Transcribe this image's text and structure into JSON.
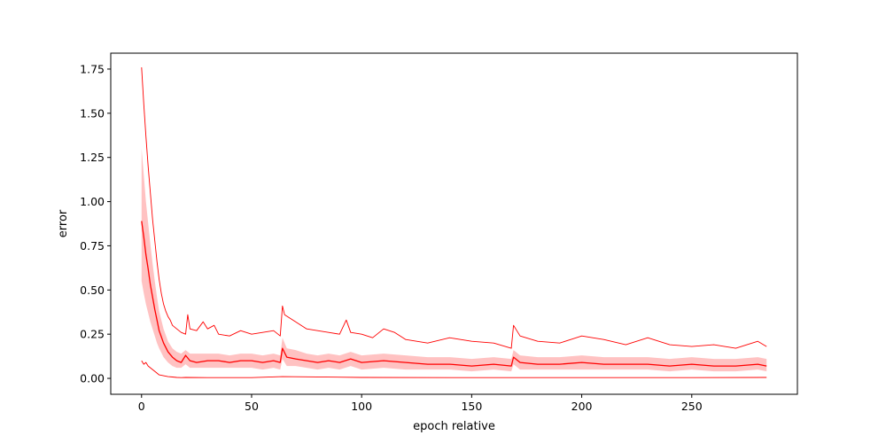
{
  "chart_data": {
    "type": "line",
    "title": "",
    "xlabel": "epoch relative",
    "ylabel": "error",
    "xlim": [
      -14,
      298
    ],
    "ylim": [
      -0.09,
      1.84
    ],
    "grid": false,
    "legend": "none",
    "xticks": [
      0,
      50,
      100,
      150,
      200,
      250
    ],
    "xtick_labels": [
      "0",
      "50",
      "100",
      "150",
      "200",
      "250"
    ],
    "yticks": [
      0.0,
      0.25,
      0.5,
      0.75,
      1.0,
      1.25,
      1.5,
      1.75
    ],
    "ytick_labels": [
      "0.00",
      "0.25",
      "0.50",
      "0.75",
      "1.00",
      "1.25",
      "1.50",
      "1.75"
    ],
    "colors": {
      "line": "#ff0000",
      "band": "#ff9999"
    },
    "series": [
      {
        "role": "mean",
        "x": [
          0,
          1,
          2,
          3,
          4,
          5,
          6,
          7,
          8,
          10,
          12,
          14,
          16,
          18,
          20,
          22,
          25,
          30,
          35,
          40,
          45,
          50,
          55,
          60,
          63,
          64,
          66,
          70,
          75,
          80,
          85,
          90,
          95,
          100,
          110,
          120,
          130,
          140,
          150,
          160,
          168,
          169,
          172,
          180,
          190,
          200,
          210,
          220,
          230,
          240,
          250,
          260,
          270,
          280,
          284
        ],
        "y": [
          0.89,
          0.8,
          0.7,
          0.62,
          0.53,
          0.46,
          0.39,
          0.33,
          0.27,
          0.2,
          0.15,
          0.12,
          0.1,
          0.09,
          0.13,
          0.1,
          0.09,
          0.1,
          0.1,
          0.09,
          0.1,
          0.1,
          0.09,
          0.1,
          0.09,
          0.17,
          0.12,
          0.11,
          0.1,
          0.09,
          0.1,
          0.09,
          0.11,
          0.09,
          0.1,
          0.09,
          0.08,
          0.08,
          0.07,
          0.08,
          0.07,
          0.12,
          0.09,
          0.08,
          0.08,
          0.09,
          0.08,
          0.08,
          0.08,
          0.07,
          0.08,
          0.07,
          0.07,
          0.08,
          0.07
        ]
      },
      {
        "role": "band_upper",
        "x": [
          0,
          1,
          2,
          3,
          4,
          5,
          6,
          7,
          8,
          10,
          12,
          14,
          16,
          18,
          20,
          22,
          25,
          30,
          35,
          40,
          45,
          50,
          55,
          60,
          63,
          64,
          66,
          70,
          75,
          80,
          85,
          90,
          95,
          100,
          110,
          120,
          130,
          140,
          150,
          160,
          168,
          169,
          172,
          180,
          190,
          200,
          210,
          220,
          230,
          240,
          250,
          260,
          270,
          280,
          284
        ],
        "y": [
          1.3,
          1.15,
          1.0,
          0.88,
          0.76,
          0.65,
          0.55,
          0.46,
          0.38,
          0.28,
          0.21,
          0.17,
          0.15,
          0.14,
          0.16,
          0.14,
          0.14,
          0.14,
          0.14,
          0.13,
          0.14,
          0.14,
          0.13,
          0.14,
          0.13,
          0.23,
          0.17,
          0.16,
          0.14,
          0.13,
          0.14,
          0.13,
          0.15,
          0.13,
          0.14,
          0.13,
          0.12,
          0.12,
          0.11,
          0.12,
          0.11,
          0.16,
          0.13,
          0.12,
          0.12,
          0.13,
          0.12,
          0.12,
          0.12,
          0.11,
          0.12,
          0.11,
          0.11,
          0.12,
          0.11
        ]
      },
      {
        "role": "band_lower",
        "x": [
          0,
          1,
          2,
          3,
          4,
          5,
          6,
          7,
          8,
          10,
          12,
          14,
          16,
          18,
          20,
          22,
          25,
          30,
          35,
          40,
          45,
          50,
          55,
          60,
          63,
          64,
          66,
          70,
          75,
          80,
          85,
          90,
          95,
          100,
          110,
          120,
          130,
          140,
          150,
          160,
          168,
          169,
          172,
          180,
          190,
          200,
          210,
          220,
          230,
          240,
          250,
          260,
          270,
          280,
          284
        ],
        "y": [
          0.55,
          0.48,
          0.42,
          0.37,
          0.32,
          0.28,
          0.24,
          0.2,
          0.17,
          0.12,
          0.09,
          0.07,
          0.06,
          0.06,
          0.08,
          0.06,
          0.06,
          0.06,
          0.06,
          0.06,
          0.06,
          0.06,
          0.05,
          0.06,
          0.05,
          0.11,
          0.07,
          0.07,
          0.06,
          0.05,
          0.06,
          0.05,
          0.07,
          0.05,
          0.06,
          0.05,
          0.05,
          0.05,
          0.04,
          0.05,
          0.04,
          0.08,
          0.05,
          0.05,
          0.05,
          0.05,
          0.05,
          0.05,
          0.05,
          0.04,
          0.05,
          0.04,
          0.04,
          0.05,
          0.04
        ]
      },
      {
        "role": "max",
        "x": [
          0,
          1,
          2,
          3,
          4,
          5,
          6,
          7,
          8,
          9,
          10,
          11,
          12,
          13,
          14,
          16,
          18,
          20,
          21,
          22,
          25,
          28,
          30,
          33,
          35,
          40,
          45,
          50,
          55,
          60,
          63,
          64,
          65,
          70,
          75,
          80,
          85,
          90,
          93,
          95,
          100,
          105,
          110,
          115,
          120,
          130,
          140,
          150,
          160,
          168,
          169,
          172,
          180,
          190,
          200,
          210,
          220,
          230,
          240,
          250,
          260,
          270,
          280,
          284
        ],
        "y": [
          1.76,
          1.55,
          1.37,
          1.2,
          1.05,
          0.9,
          0.78,
          0.66,
          0.56,
          0.48,
          0.42,
          0.38,
          0.35,
          0.33,
          0.3,
          0.28,
          0.26,
          0.25,
          0.36,
          0.28,
          0.27,
          0.32,
          0.28,
          0.3,
          0.25,
          0.24,
          0.27,
          0.25,
          0.26,
          0.27,
          0.24,
          0.41,
          0.36,
          0.32,
          0.28,
          0.27,
          0.26,
          0.25,
          0.33,
          0.26,
          0.25,
          0.23,
          0.28,
          0.26,
          0.22,
          0.2,
          0.23,
          0.21,
          0.2,
          0.17,
          0.3,
          0.24,
          0.21,
          0.2,
          0.24,
          0.22,
          0.19,
          0.23,
          0.19,
          0.18,
          0.19,
          0.17,
          0.21,
          0.18
        ]
      },
      {
        "role": "min",
        "x": [
          0,
          1,
          2,
          3,
          4,
          5,
          6,
          7,
          8,
          10,
          12,
          14,
          16,
          18,
          20,
          30,
          50,
          64,
          100,
          150,
          200,
          250,
          284
        ],
        "y": [
          0.1,
          0.08,
          0.09,
          0.07,
          0.06,
          0.05,
          0.04,
          0.03,
          0.02,
          0.015,
          0.01,
          0.008,
          0.005,
          0.004,
          0.005,
          0.004,
          0.004,
          0.01,
          0.005,
          0.004,
          0.004,
          0.004,
          0.005
        ]
      }
    ]
  }
}
